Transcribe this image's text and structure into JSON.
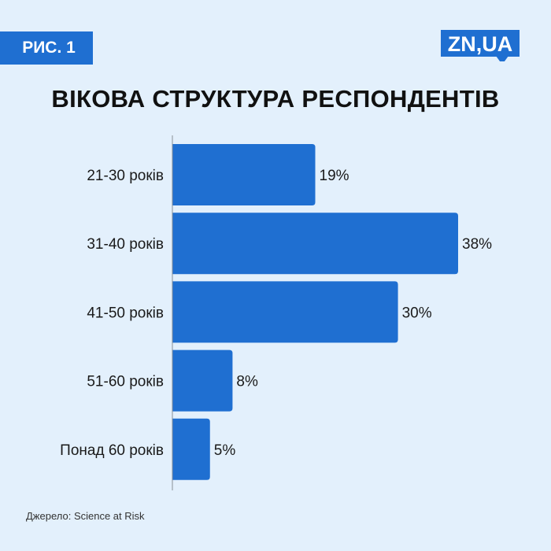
{
  "badge": {
    "label": "РИС. 1"
  },
  "logo": {
    "text": "ZN,UA"
  },
  "colors": {
    "background": "#e3f0fc",
    "bar": "#1f6fd1",
    "accent": "#1f6fd1"
  },
  "source": "Джерело: Science at Risk",
  "chart_data": {
    "type": "bar",
    "orientation": "horizontal",
    "title": "ВІКОВА СТРУКТУРА РЕСПОНДЕНТІВ",
    "categories": [
      "21-30 років",
      "31-40 років",
      "41-50 років",
      "51-60 років",
      "Понад 60 років"
    ],
    "values": [
      19,
      38,
      30,
      8,
      5
    ],
    "value_labels": [
      "19%",
      "38%",
      "30%",
      "8%",
      "5%"
    ],
    "unit": "%",
    "xlim": [
      0,
      38
    ],
    "grid": false,
    "legend": "none"
  }
}
